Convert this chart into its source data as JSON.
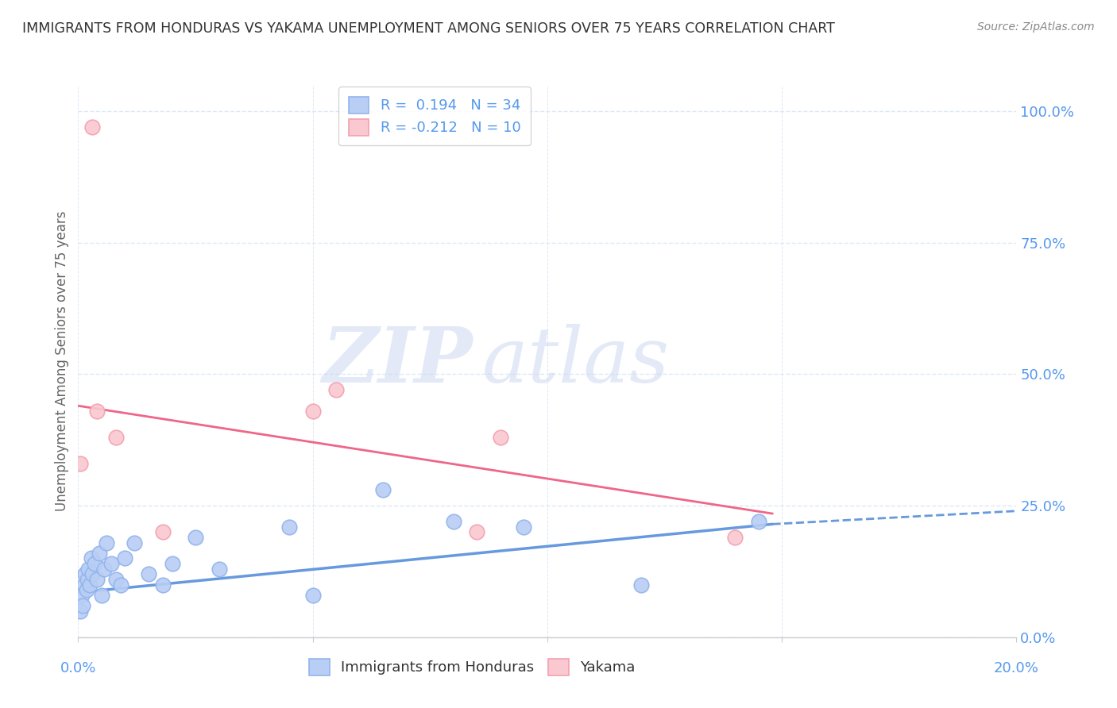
{
  "title": "IMMIGRANTS FROM HONDURAS VS YAKAMA UNEMPLOYMENT AMONG SENIORS OVER 75 YEARS CORRELATION CHART",
  "source": "Source: ZipAtlas.com",
  "ylabel": "Unemployment Among Seniors over 75 years",
  "ytick_vals": [
    0.0,
    25.0,
    50.0,
    75.0,
    100.0
  ],
  "xlim": [
    0.0,
    20.0
  ],
  "ylim": [
    0.0,
    105.0
  ],
  "blue_color": "#92b4ec",
  "blue_fill": "#b8cef5",
  "pink_color": "#f4a0b0",
  "pink_fill": "#fac8d0",
  "line_blue": "#6699dd",
  "line_pink": "#ee6688",
  "legend_label_blue": "Immigrants from Honduras",
  "legend_label_pink": "Yakama",
  "R_blue": 0.194,
  "N_blue": 34,
  "R_pink": -0.212,
  "N_pink": 10,
  "blue_points_x": [
    0.05,
    0.08,
    0.1,
    0.12,
    0.15,
    0.18,
    0.2,
    0.22,
    0.25,
    0.28,
    0.3,
    0.35,
    0.4,
    0.45,
    0.5,
    0.55,
    0.6,
    0.7,
    0.8,
    0.9,
    1.0,
    1.2,
    1.5,
    1.8,
    2.0,
    2.5,
    3.0,
    4.5,
    5.0,
    6.5,
    8.0,
    9.5,
    12.0,
    14.5
  ],
  "blue_points_y": [
    5,
    8,
    6,
    10,
    12,
    9,
    11,
    13,
    10,
    15,
    12,
    14,
    11,
    16,
    8,
    13,
    18,
    14,
    11,
    10,
    15,
    18,
    12,
    10,
    14,
    19,
    13,
    21,
    8,
    28,
    22,
    21,
    10,
    22
  ],
  "pink_points_x": [
    0.05,
    0.3,
    0.4,
    0.8,
    1.8,
    5.0,
    5.5,
    8.5,
    9.0,
    14.0
  ],
  "pink_points_y": [
    33,
    97,
    43,
    38,
    20,
    43,
    47,
    20,
    38,
    19
  ],
  "blue_trend_x0": 0.0,
  "blue_trend_x1": 14.8,
  "blue_trend_y0": 8.5,
  "blue_trend_y1": 21.5,
  "blue_dash_x0": 14.8,
  "blue_dash_x1": 20.0,
  "blue_dash_y0": 21.5,
  "blue_dash_y1": 24.0,
  "pink_trend_x0": 0.0,
  "pink_trend_x1": 14.8,
  "pink_trend_y0": 44.0,
  "pink_trend_y1": 23.5,
  "background_color": "#ffffff",
  "grid_color": "#dde8f5",
  "title_color": "#333333",
  "axis_label_color": "#5599ee",
  "ylabel_color": "#666666"
}
